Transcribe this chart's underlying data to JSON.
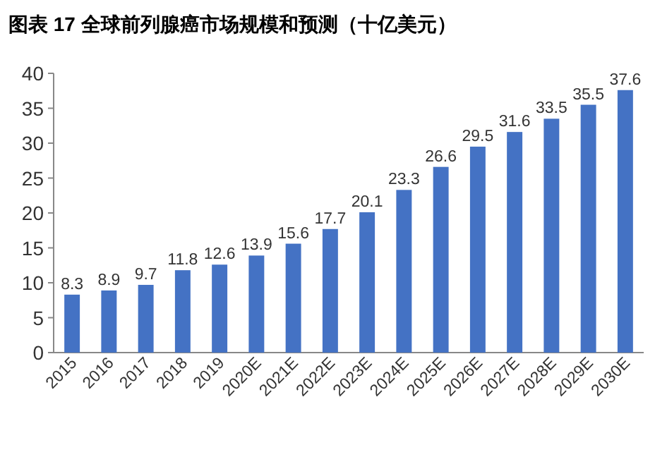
{
  "chart_data": {
    "type": "bar",
    "title": "图表 17 全球前列腺癌市场规模和预测（十亿美元）",
    "categories": [
      "2015",
      "2016",
      "2017",
      "2018",
      "2019",
      "2020E",
      "2021E",
      "2022E",
      "2023E",
      "2024E",
      "2025E",
      "2026E",
      "2027E",
      "2028E",
      "2029E",
      "2030E"
    ],
    "values": [
      8.3,
      8.9,
      9.7,
      11.8,
      12.6,
      13.9,
      15.6,
      17.7,
      20.1,
      23.3,
      26.6,
      29.5,
      31.6,
      33.5,
      35.5,
      37.6
    ],
    "color": "#4472c4",
    "ylim": [
      0,
      40
    ],
    "yticks": [
      0,
      5,
      10,
      15,
      20,
      25,
      30,
      35,
      40
    ],
    "data_labels": true,
    "grid": false
  }
}
